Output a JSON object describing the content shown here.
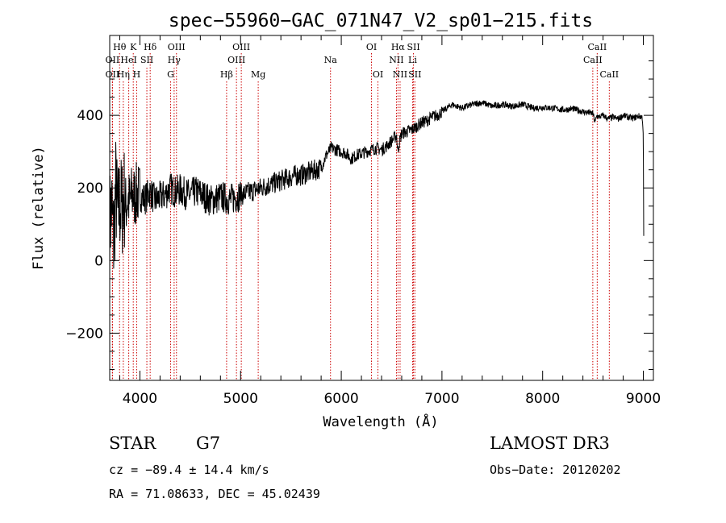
{
  "chart_data": {
    "type": "line",
    "title": "spec−55960−GAC_071N47_V2_sp01−215.fits",
    "xlabel": "Wavelength (Å)",
    "ylabel": "Flux (relative)",
    "xlim": [
      3700,
      9100
    ],
    "ylim": [
      -330,
      620
    ],
    "xticks": [
      4000,
      5000,
      6000,
      7000,
      8000,
      9000
    ],
    "xtick_labels": [
      "4000",
      "5000",
      "6000",
      "7000",
      "8000",
      "9000"
    ],
    "yticks": [
      -200,
      0,
      200,
      400
    ],
    "ytick_labels": [
      "−200",
      "0",
      "200",
      "400"
    ],
    "grid": false,
    "series": [
      {
        "name": "spectrum",
        "x": [
          3700,
          3720,
          3740,
          3760,
          3780,
          3800,
          3820,
          3840,
          3860,
          3880,
          3900,
          3920,
          3950,
          3970,
          4000,
          4050,
          4100,
          4150,
          4200,
          4250,
          4300,
          4350,
          4400,
          4450,
          4500,
          4550,
          4600,
          4650,
          4700,
          4750,
          4800,
          4850,
          4900,
          4950,
          5000,
          5050,
          5100,
          5150,
          5200,
          5250,
          5300,
          5350,
          5400,
          5450,
          5500,
          5550,
          5600,
          5650,
          5700,
          5750,
          5800,
          5850,
          5900,
          5950,
          6000,
          6050,
          6100,
          6150,
          6200,
          6250,
          6300,
          6350,
          6400,
          6450,
          6500,
          6550,
          6560,
          6580,
          6600,
          6650,
          6700,
          6750,
          6800,
          6850,
          6900,
          6950,
          7000,
          7050,
          7100,
          7150,
          7200,
          7300,
          7400,
          7500,
          7600,
          7700,
          7800,
          7900,
          8000,
          8100,
          8200,
          8300,
          8400,
          8500,
          8520,
          8540,
          8560,
          8600,
          8650,
          8700,
          8750,
          8800,
          8850,
          8900,
          8950,
          8990,
          9000,
          9005
        ],
        "y": [
          100,
          150,
          50,
          200,
          120,
          160,
          140,
          180,
          150,
          170,
          160,
          180,
          175,
          185,
          180,
          170,
          190,
          165,
          175,
          180,
          200,
          190,
          195,
          185,
          180,
          190,
          185,
          175,
          165,
          170,
          175,
          172,
          168,
          175,
          180,
          185,
          190,
          195,
          200,
          205,
          210,
          215,
          220,
          225,
          230,
          235,
          235,
          240,
          245,
          250,
          255,
          290,
          310,
          305,
          300,
          295,
          280,
          290,
          295,
          300,
          305,
          310,
          305,
          315,
          330,
          345,
          300,
          330,
          350,
          355,
          360,
          370,
          380,
          385,
          395,
          400,
          410,
          420,
          430,
          425,
          420,
          430,
          435,
          425,
          430,
          425,
          430,
          420,
          422,
          420,
          415,
          418,
          410,
          405,
          380,
          400,
          395,
          400,
          390,
          395,
          390,
          400,
          395,
          392,
          398,
          395,
          340,
          0
        ]
      }
    ],
    "spectral_lines": [
      {
        "label": "Hθ",
        "x": 3798,
        "row": 1
      },
      {
        "label": "OII",
        "x": 3727,
        "row": 2
      },
      {
        "label": "OII",
        "x": 3727,
        "row": 3
      },
      {
        "label": "K",
        "x": 3934,
        "row": 1
      },
      {
        "label": "HeI",
        "x": 3889,
        "row": 2
      },
      {
        "label": "Hη",
        "x": 3835,
        "row": 3
      },
      {
        "label": "H",
        "x": 3968,
        "row": 3
      },
      {
        "label": "SII",
        "x": 4069,
        "row": 2
      },
      {
        "label": "Hδ",
        "x": 4102,
        "row": 1
      },
      {
        "label": "OIII",
        "x": 4363,
        "row": 1
      },
      {
        "label": "Hγ",
        "x": 4340,
        "row": 2
      },
      {
        "label": "G",
        "x": 4305,
        "row": 3
      },
      {
        "label": "Hβ",
        "x": 4861,
        "row": 3
      },
      {
        "label": "OIII",
        "x": 5007,
        "row": 1
      },
      {
        "label": "OIII",
        "x": 4959,
        "row": 2
      },
      {
        "label": "Mg",
        "x": 5175,
        "row": 3
      },
      {
        "label": "Na",
        "x": 5893,
        "row": 2
      },
      {
        "label": "OI",
        "x": 6300,
        "row": 1
      },
      {
        "label": "OI",
        "x": 6364,
        "row": 3
      },
      {
        "label": "Hα",
        "x": 6563,
        "row": 1
      },
      {
        "label": "NII",
        "x": 6548,
        "row": 2
      },
      {
        "label": "NII",
        "x": 6584,
        "row": 3
      },
      {
        "label": "SII",
        "x": 6717,
        "row": 1
      },
      {
        "label": "Li",
        "x": 6708,
        "row": 2
      },
      {
        "label": "SII",
        "x": 6731,
        "row": 3
      },
      {
        "label": "CaII",
        "x": 8542,
        "row": 1
      },
      {
        "label": "CaII",
        "x": 8498,
        "row": 2
      },
      {
        "label": "CaII",
        "x": 8662,
        "row": 3
      }
    ],
    "line_color": "#cc0000"
  },
  "info": {
    "object_type": "STAR",
    "subclass": "G7",
    "cz": "cz = −89.4 ± 14.4 km/s",
    "coords": "RA =  71.08633, DEC =  45.02439",
    "survey": "LAMOST DR3",
    "obs_date": "Obs−Date: 20120202"
  }
}
